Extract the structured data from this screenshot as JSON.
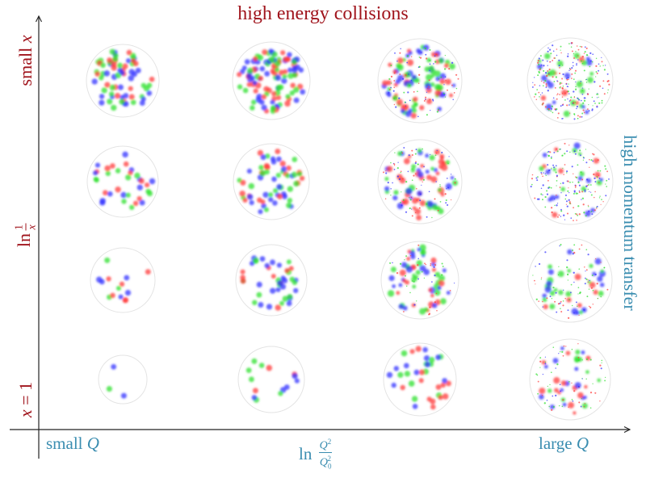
{
  "title": "high energy collisions",
  "y_axis": {
    "top_label_text": "small ",
    "top_label_var": "x",
    "middle_label_fn": "ln",
    "middle_label_num": "1",
    "middle_label_den": "x",
    "bottom_label_var": "x",
    "bottom_label_eq": " = 1"
  },
  "x_axis": {
    "left_label_text": "small ",
    "left_label_var": "Q",
    "middle_label_fn": "ln ",
    "middle_label_num": "Q",
    "middle_label_num_sup": "2",
    "middle_label_den": "Q",
    "middle_label_den_sub": "0",
    "middle_label_den_sup": "2",
    "right_label_text": "large ",
    "right_label_var": "Q"
  },
  "right_label": "high momentum transfer",
  "colors": {
    "title": "#a0141c",
    "x_axis_labels": "#3a8db0",
    "axis_line": "#222222",
    "circle_outline": "#e4e4e4",
    "dot_red": "#ff3b3b",
    "dot_green": "#2fe02f",
    "dot_blue": "#3030ff"
  },
  "chart_data": {
    "type": "grid-of-parton-disks",
    "title": "high energy collisions",
    "xlabel": "ln Q^2/Q0^2",
    "ylabel": "ln 1/x",
    "x_ticks": [
      "small Q",
      "large Q"
    ],
    "y_ticks": [
      "x = 1",
      "small x"
    ],
    "right_annotation": "high momentum transfer",
    "columns_cx": [
      152,
      336,
      520,
      706
    ],
    "rows_cy": [
      100,
      225,
      347,
      470
    ],
    "cells": [
      {
        "row": 0,
        "col": 0,
        "r": 45,
        "big": 70,
        "small": 0,
        "seed": 11
      },
      {
        "row": 0,
        "col": 1,
        "r": 48,
        "big": 110,
        "small": 0,
        "seed": 12
      },
      {
        "row": 0,
        "col": 2,
        "r": 52,
        "big": 90,
        "small": 90,
        "seed": 13
      },
      {
        "row": 0,
        "col": 3,
        "r": 53,
        "big": 30,
        "small": 260,
        "seed": 14
      },
      {
        "row": 1,
        "col": 0,
        "r": 44,
        "big": 34,
        "small": 0,
        "seed": 21
      },
      {
        "row": 1,
        "col": 1,
        "r": 47,
        "big": 60,
        "small": 0,
        "seed": 22
      },
      {
        "row": 1,
        "col": 2,
        "r": 52,
        "big": 70,
        "small": 90,
        "seed": 23
      },
      {
        "row": 1,
        "col": 3,
        "r": 53,
        "big": 25,
        "small": 200,
        "seed": 24
      },
      {
        "row": 2,
        "col": 0,
        "r": 40,
        "big": 14,
        "small": 0,
        "seed": 31
      },
      {
        "row": 2,
        "col": 1,
        "r": 44,
        "big": 42,
        "small": 0,
        "seed": 32
      },
      {
        "row": 2,
        "col": 2,
        "r": 48,
        "big": 60,
        "small": 40,
        "seed": 33
      },
      {
        "row": 2,
        "col": 3,
        "r": 52,
        "big": 35,
        "small": 90,
        "seed": 34
      },
      {
        "row": 3,
        "col": 0,
        "r": 30,
        "big": 3,
        "small": 0,
        "seed": 41
      },
      {
        "row": 3,
        "col": 1,
        "r": 41,
        "big": 14,
        "small": 0,
        "seed": 42
      },
      {
        "row": 3,
        "col": 2,
        "r": 45,
        "big": 35,
        "small": 0,
        "seed": 43
      },
      {
        "row": 3,
        "col": 3,
        "r": 50,
        "big": 35,
        "small": 70,
        "seed": 44
      }
    ]
  }
}
